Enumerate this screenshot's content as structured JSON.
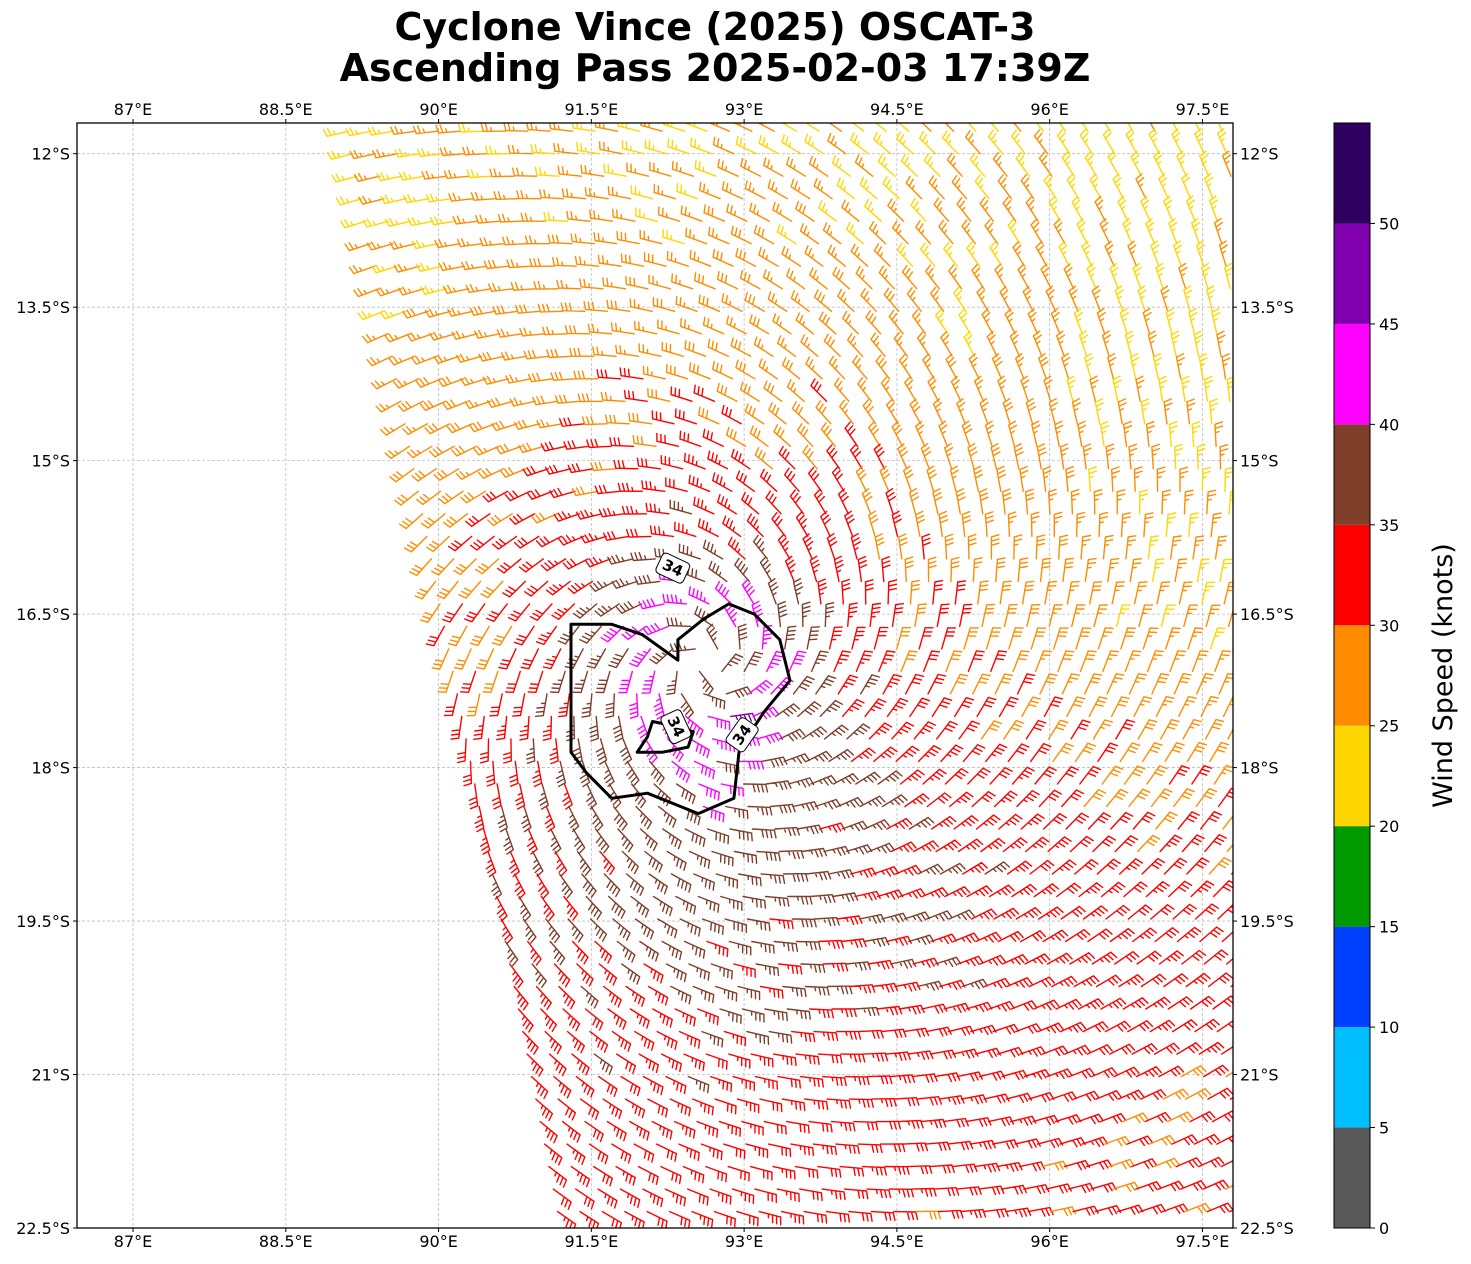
{
  "title_line1": "Cyclone Vince (2025) OSCAT-3",
  "title_line2": "Ascending Pass 2025-02-03 17:39Z",
  "chart_data": {
    "type": "wind_barb_map",
    "title": "Cyclone Vince (2025) OSCAT-3 Ascending Pass 2025-02-03 17:39Z",
    "lon_range": [
      86.45,
      97.8
    ],
    "lat_range": [
      -22.5,
      -11.7
    ],
    "lon_ticks": [
      87,
      88.5,
      90,
      91.5,
      93,
      94.5,
      96,
      97.5
    ],
    "lon_tick_labels": [
      "87°E",
      "88.5°E",
      "90°E",
      "91.5°E",
      "93°E",
      "94.5°E",
      "96°E",
      "97.5°E"
    ],
    "lat_ticks": [
      -12,
      -13.5,
      -15,
      -16.5,
      -18,
      -19.5,
      -21,
      -22.5
    ],
    "lat_tick_labels": [
      "12°S",
      "13.5°S",
      "15°S",
      "16.5°S",
      "18°S",
      "19.5°S",
      "21°S",
      "22.5°S"
    ],
    "grid": true,
    "storm_center": {
      "lon": 92.6,
      "lat": -17.0
    },
    "swath_west_edge": [
      [
        89.0,
        -11.7
      ],
      [
        91.1,
        -22.5
      ]
    ],
    "contour_level_label": "34",
    "contour_34kt": [
      [
        91.3,
        -16.6
      ],
      [
        91.7,
        -16.6
      ],
      [
        92.0,
        -16.7
      ],
      [
        92.35,
        -16.95
      ],
      [
        92.35,
        -16.75
      ],
      [
        92.6,
        -16.55
      ],
      [
        92.85,
        -16.4
      ],
      [
        93.1,
        -16.5
      ],
      [
        93.35,
        -16.75
      ],
      [
        93.45,
        -17.15
      ],
      [
        93.2,
        -17.45
      ],
      [
        93.1,
        -17.6
      ],
      [
        92.95,
        -17.85
      ],
      [
        92.9,
        -18.3
      ],
      [
        92.55,
        -18.45
      ],
      [
        92.05,
        -18.25
      ],
      [
        91.7,
        -18.3
      ],
      [
        91.45,
        -18.05
      ],
      [
        91.3,
        -17.85
      ],
      [
        91.3,
        -17.2
      ],
      [
        91.3,
        -16.6
      ]
    ],
    "contour_34kt_inner": [
      [
        92.1,
        -17.55
      ],
      [
        92.35,
        -17.6
      ],
      [
        92.5,
        -17.65
      ],
      [
        92.45,
        -17.8
      ],
      [
        92.2,
        -17.85
      ],
      [
        91.95,
        -17.85
      ],
      [
        92.05,
        -17.7
      ],
      [
        92.1,
        -17.55
      ]
    ],
    "contour_label_positions": [
      [
        92.3,
        -16.05
      ],
      [
        92.33,
        -17.6
      ],
      [
        92.98,
        -17.68
      ]
    ],
    "colorbar": {
      "label": "Wind Speed (knots)",
      "levels": [
        0,
        5,
        10,
        15,
        20,
        25,
        30,
        35,
        40,
        45,
        50,
        55
      ],
      "tick_values": [
        0,
        5,
        10,
        15,
        20,
        25,
        30,
        35,
        40,
        45,
        50
      ],
      "tick_labels": [
        "0",
        "5",
        "10",
        "15",
        "20",
        "25",
        "30",
        "35",
        "40",
        "45",
        "50"
      ],
      "colors": [
        "#595959",
        "#00bfff",
        "#0040ff",
        "#009900",
        "#ffd700",
        "#ff8c00",
        "#ff0000",
        "#7f3f2a",
        "#ff00ff",
        "#8000b0",
        "#300060"
      ]
    },
    "wind_speed_model": {
      "rmw_deg": 0.55,
      "vmax_kt": 44,
      "outer_decay": 0.42,
      "floor_kt": 13,
      "south_enhancement_kt": 7,
      "grid_step_deg": 0.22
    }
  }
}
